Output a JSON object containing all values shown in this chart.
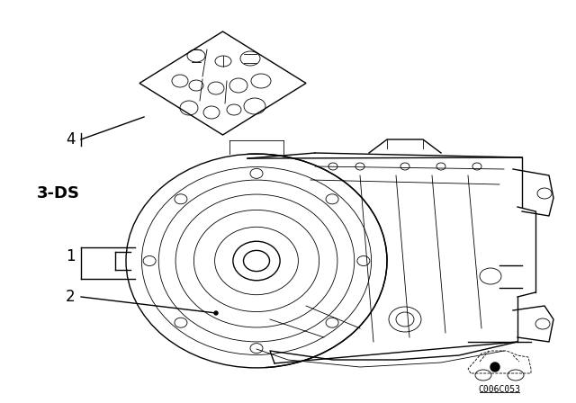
{
  "bg_color": "#ffffff",
  "fig_width": 6.4,
  "fig_height": 4.48,
  "title": "",
  "label_3ds": "3-DS",
  "label_1": "1",
  "label_2": "2",
  "label_4": "4",
  "code": "C006C053",
  "line_color": "#000000",
  "lw_main": 1.0,
  "lw_thin": 0.6
}
